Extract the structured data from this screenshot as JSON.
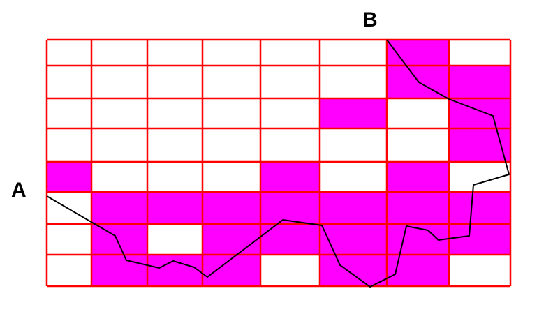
{
  "labels": {
    "start": "A",
    "end": "B"
  },
  "grid": {
    "columns": 8,
    "rows": 8,
    "line_color": "#ff0000",
    "fill_color": "#ff00ff",
    "shaded_cells": [
      [
        0,
        6
      ],
      [
        1,
        6
      ],
      [
        1,
        7
      ],
      [
        2,
        5
      ],
      [
        2,
        7
      ],
      [
        3,
        7
      ],
      [
        4,
        0
      ],
      [
        4,
        4
      ],
      [
        4,
        6
      ],
      [
        5,
        1
      ],
      [
        5,
        2
      ],
      [
        5,
        3
      ],
      [
        5,
        4
      ],
      [
        5,
        5
      ],
      [
        5,
        6
      ],
      [
        5,
        7
      ],
      [
        6,
        1
      ],
      [
        6,
        3
      ],
      [
        6,
        4
      ],
      [
        6,
        5
      ],
      [
        6,
        6
      ],
      [
        6,
        7
      ],
      [
        7,
        1
      ],
      [
        7,
        2
      ],
      [
        7,
        3
      ],
      [
        7,
        5
      ],
      [
        7,
        6
      ]
    ]
  },
  "path": {
    "color": "#000000"
  }
}
